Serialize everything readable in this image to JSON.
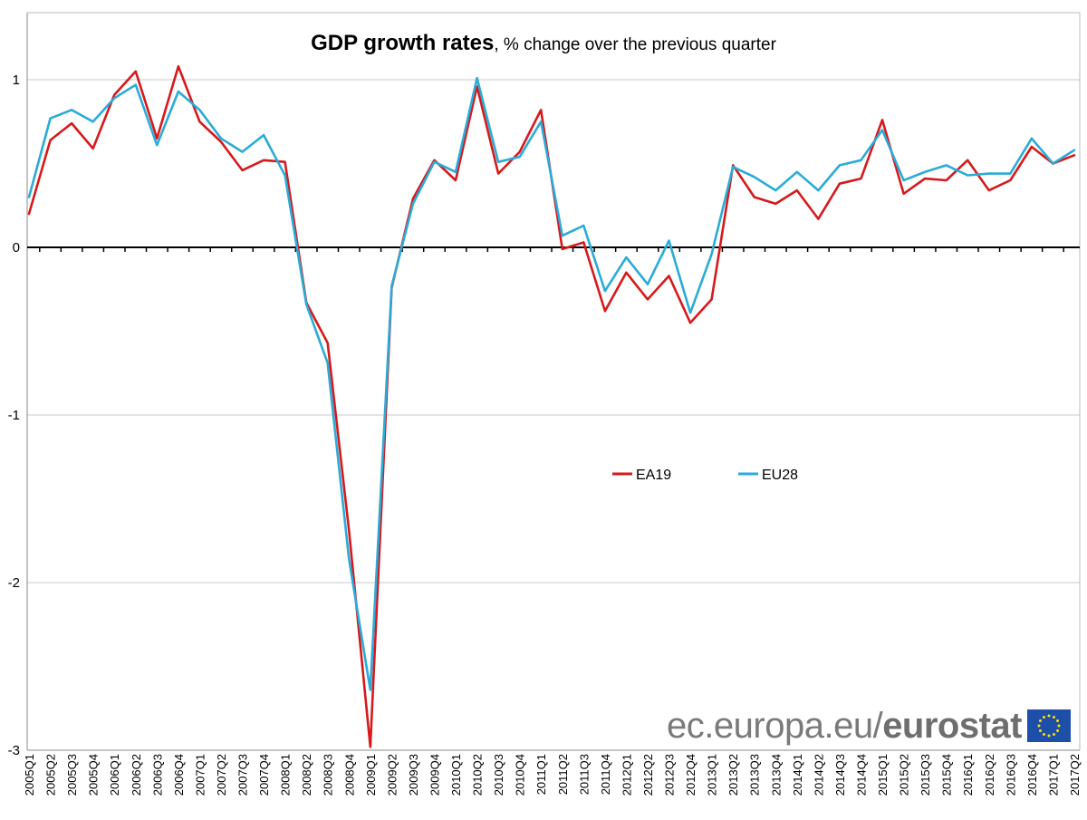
{
  "title": {
    "main": "GDP growth rates",
    "sub": ", % change over the previous quarter"
  },
  "brand": {
    "prefix": "ec.europa.eu/",
    "name": "eurostat",
    "flag_icon": "eu-flag-icon"
  },
  "colors": {
    "EA19": "#d7191c",
    "EU28": "#2aabd8",
    "grid": "#c8c8c8",
    "axis": "#000000",
    "flag": "#1e4fa8",
    "stars": "#ffdd00"
  },
  "chart_data": {
    "type": "line",
    "title": "GDP growth rates, % change over the previous quarter",
    "xlabel": "",
    "ylabel": "",
    "ylim": [
      -3,
      1.4
    ],
    "yticks": [
      1,
      0,
      -1,
      -2,
      -3
    ],
    "grid": true,
    "legend_position": "center-right",
    "x": [
      "2005Q1",
      "2005Q2",
      "2005Q3",
      "2005Q4",
      "2006Q1",
      "2006Q2",
      "2006Q3",
      "2006Q4",
      "2007Q1",
      "2007Q2",
      "2007Q3",
      "2007Q4",
      "2008Q1",
      "2008Q2",
      "2008Q3",
      "2008Q4",
      "2009Q1",
      "2009Q2",
      "2009Q3",
      "2009Q4",
      "2010Q1",
      "2010Q2",
      "2010Q3",
      "2010Q4",
      "2011Q1",
      "2011Q2",
      "2011Q3",
      "2011Q4",
      "2012Q1",
      "2012Q2",
      "2012Q3",
      "2012Q4",
      "2013Q1",
      "2013Q2",
      "2013Q3",
      "2013Q4",
      "2014Q1",
      "2014Q2",
      "2014Q3",
      "2014Q4",
      "2015Q1",
      "2015Q2",
      "2015Q3",
      "2015Q4",
      "2016Q1",
      "2016Q2",
      "2016Q3",
      "2016Q4",
      "2017Q1",
      "2017Q2"
    ],
    "series": [
      {
        "name": "EA19",
        "values": [
          0.2,
          0.64,
          0.74,
          0.59,
          0.91,
          1.05,
          0.65,
          1.08,
          0.75,
          0.63,
          0.46,
          0.52,
          0.51,
          -0.33,
          -0.57,
          -1.69,
          -2.98,
          -0.24,
          0.29,
          0.52,
          0.4,
          0.96,
          0.44,
          0.57,
          0.82,
          -0.01,
          0.03,
          -0.38,
          -0.15,
          -0.31,
          -0.17,
          -0.45,
          -0.31,
          0.49,
          0.3,
          0.26,
          0.34,
          0.17,
          0.38,
          0.41,
          0.76,
          0.32,
          0.41,
          0.4,
          0.52,
          0.34,
          0.4,
          0.6,
          0.5,
          0.55
        ]
      },
      {
        "name": "EU28",
        "values": [
          0.3,
          0.77,
          0.82,
          0.75,
          0.89,
          0.97,
          0.61,
          0.93,
          0.82,
          0.65,
          0.57,
          0.67,
          0.43,
          -0.34,
          -0.69,
          -1.86,
          -2.64,
          -0.23,
          0.26,
          0.51,
          0.45,
          1.01,
          0.51,
          0.54,
          0.75,
          0.07,
          0.13,
          -0.26,
          -0.06,
          -0.22,
          0.04,
          -0.39,
          -0.04,
          0.48,
          0.42,
          0.34,
          0.45,
          0.34,
          0.49,
          0.52,
          0.7,
          0.4,
          0.45,
          0.49,
          0.43,
          0.44,
          0.44,
          0.65,
          0.5,
          0.58
        ]
      }
    ]
  }
}
